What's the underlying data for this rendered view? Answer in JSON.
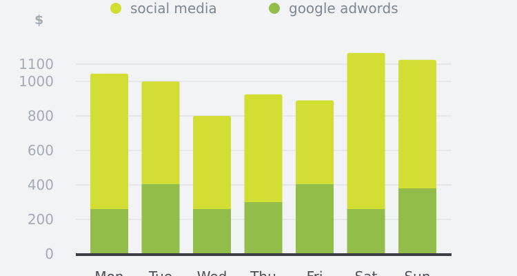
{
  "chart_data": {
    "type": "bar",
    "stacked": true,
    "ylabel": "$",
    "ylim": [
      0,
      1180
    ],
    "yticks": [
      0,
      200,
      400,
      600,
      800,
      1000,
      1100
    ],
    "categories": [
      "Mon",
      "Tue",
      "Wed",
      "Thu",
      "Fri",
      "Sat",
      "Sun"
    ],
    "series": [
      {
        "name": "google adwords",
        "color": "#93bd4b",
        "values": [
          260,
          405,
          260,
          300,
          405,
          260,
          380
        ]
      },
      {
        "name": "social media",
        "color": "#d2de33",
        "values": [
          785,
          595,
          540,
          625,
          485,
          905,
          745
        ]
      }
    ],
    "legend_position": "top",
    "grid": true
  },
  "legend": {
    "items": [
      {
        "label": "social media",
        "color": "#d2de33"
      },
      {
        "label": "google adwords",
        "color": "#93bd4b"
      }
    ]
  },
  "yaxis": {
    "unit_label": "$"
  }
}
